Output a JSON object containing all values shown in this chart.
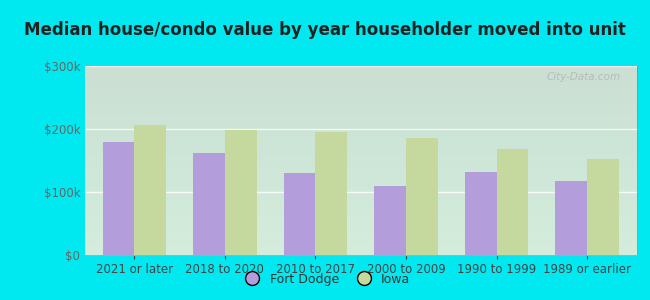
{
  "title": "Median house/condo value by year householder moved into unit",
  "categories": [
    "2021 or later",
    "2018 to 2020",
    "2010 to 2017",
    "2000 to 2009",
    "1990 to 1999",
    "1989 or earlier"
  ],
  "fort_dodge_values": [
    180000,
    162000,
    130000,
    110000,
    132000,
    118000
  ],
  "iowa_values": [
    207000,
    198000,
    196000,
    185000,
    168000,
    152000
  ],
  "fort_dodge_color": "#b39ddb",
  "iowa_color": "#c5d89d",
  "background_outer": "#00e8f0",
  "ylim": [
    0,
    300000
  ],
  "yticks": [
    0,
    100000,
    200000,
    300000
  ],
  "ytick_labels": [
    "$0",
    "$100k",
    "$200k",
    "$300k"
  ],
  "bar_width": 0.35,
  "legend_labels": [
    "Fort Dodge",
    "Iowa"
  ],
  "watermark": "City-Data.com",
  "title_fontsize": 12,
  "tick_fontsize": 8.5,
  "legend_fontsize": 9,
  "ytick_color": "#666666",
  "xtick_color": "#444444"
}
